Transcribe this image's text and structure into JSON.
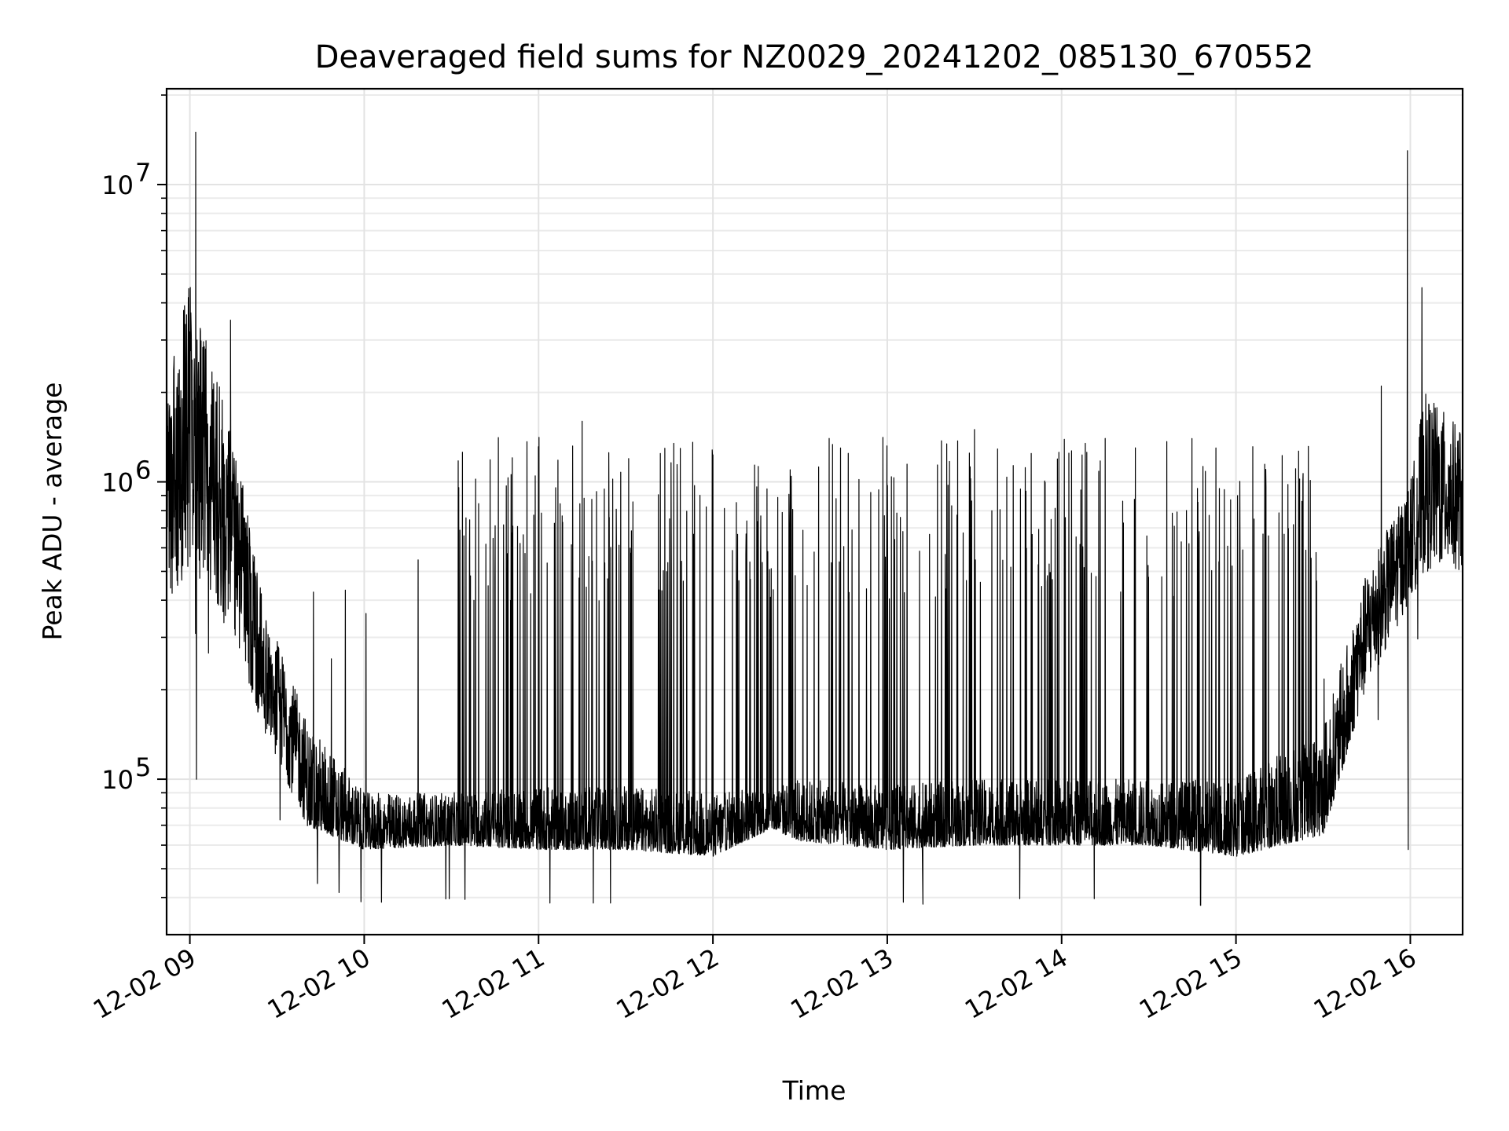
{
  "chart_data": {
    "type": "line",
    "title": "Deaveraged field sums for NZ0029_20241202_085130_670552",
    "xlabel": "Time",
    "ylabel": "Peak ADU - average",
    "x_ticks": [
      "12-02 09",
      "12-02 10",
      "12-02 11",
      "12-02 12",
      "12-02 13",
      "12-02 14",
      "12-02 15",
      "12-02 16"
    ],
    "y_ticks": [
      {
        "base": "10",
        "exp": "5",
        "value": 100000
      },
      {
        "base": "10",
        "exp": "6",
        "value": 1000000
      },
      {
        "base": "10",
        "exp": "7",
        "value": 10000000
      }
    ],
    "x_range": [
      "2024-12-02 08:52",
      "2024-12-02 16:18"
    ],
    "ylim": [
      30000,
      21000000
    ],
    "y_scale": "log",
    "grid": "on",
    "line_color": "#000000",
    "series": [
      {
        "x_start": "2024-12-02 08:52",
        "x_end": "2024-12-02 16:18",
        "envelope": [
          {
            "time": "08:52",
            "low": 400000,
            "high": 2000000
          },
          {
            "time": "09:00",
            "low": 500000,
            "high": 5000000
          },
          {
            "time": "09:15",
            "low": 300000,
            "high": 1500000
          },
          {
            "time": "09:25",
            "low": 150000,
            "high": 400000
          },
          {
            "time": "09:40",
            "low": 70000,
            "high": 160000
          },
          {
            "time": "10:00",
            "low": 58000,
            "high": 90000
          },
          {
            "time": "10:30",
            "low": 60000,
            "high": 90000
          },
          {
            "time": "11:00",
            "low": 58000,
            "high": 95000
          },
          {
            "time": "11:30",
            "low": 58000,
            "high": 95000
          },
          {
            "time": "12:00",
            "low": 55000,
            "high": 90000
          },
          {
            "time": "12:20",
            "low": 68000,
            "high": 95000
          },
          {
            "time": "12:30",
            "low": 62000,
            "high": 100000
          },
          {
            "time": "13:00",
            "low": 58000,
            "high": 95000
          },
          {
            "time": "13:30",
            "low": 60000,
            "high": 100000
          },
          {
            "time": "14:00",
            "low": 60000,
            "high": 100000
          },
          {
            "time": "14:30",
            "low": 60000,
            "high": 100000
          },
          {
            "time": "15:00",
            "low": 55000,
            "high": 100000
          },
          {
            "time": "15:30",
            "low": 65000,
            "high": 150000
          },
          {
            "time": "15:45",
            "low": 200000,
            "high": 500000
          },
          {
            "time": "16:00",
            "low": 400000,
            "high": 1000000
          },
          {
            "time": "16:05",
            "low": 500000,
            "high": 2000000
          },
          {
            "time": "16:18",
            "low": 500000,
            "high": 1500000
          }
        ],
        "spikes": [
          {
            "time": "09:02",
            "value": 15000000
          },
          {
            "time": "15:59",
            "value": 13000000
          },
          {
            "time": "16:04",
            "value": 4500000
          },
          {
            "time": "09:14",
            "value": 3500000
          },
          {
            "time": "11:15",
            "value": 1600000
          },
          {
            "time": "12:40",
            "value": 1400000
          },
          {
            "time": "13:30",
            "value": 1500000
          },
          {
            "time": "14:15",
            "value": 1400000
          },
          {
            "time": "15:50",
            "value": 2100000
          }
        ]
      }
    ]
  }
}
